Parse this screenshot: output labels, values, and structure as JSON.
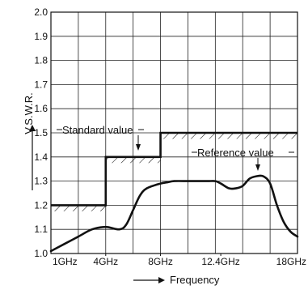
{
  "chart_data": {
    "type": "line",
    "xlabel": "Frequency",
    "ylabel": "V.S.W.R.",
    "xlim": [
      0,
      18
    ],
    "ylim": [
      1.0,
      2.0
    ],
    "x_ticks": [
      {
        "value": 1,
        "label": "1GHz"
      },
      {
        "value": 4,
        "label": "4GHz"
      },
      {
        "value": 8,
        "label": "8GHz"
      },
      {
        "value": 12.4,
        "label": "12.4GHz"
      },
      {
        "value": 18,
        "label": "18GHz"
      }
    ],
    "y_ticks": [
      {
        "value": 1.0,
        "label": "1.0"
      },
      {
        "value": 1.1,
        "label": "1.1"
      },
      {
        "value": 1.2,
        "label": "1.2"
      },
      {
        "value": 1.3,
        "label": "1.3"
      },
      {
        "value": 1.4,
        "label": "1.4"
      },
      {
        "value": 1.5,
        "label": "1.5"
      },
      {
        "value": 1.6,
        "label": "1.6"
      },
      {
        "value": 1.7,
        "label": "1.7"
      },
      {
        "value": 1.8,
        "label": "1.8"
      },
      {
        "value": 1.9,
        "label": "1.9"
      },
      {
        "value": 2.0,
        "label": "2.0"
      }
    ],
    "grid": true,
    "series": [
      {
        "name": "Standard value",
        "kind": "step",
        "x": [
          0,
          4,
          4,
          8,
          8,
          18
        ],
        "y": [
          1.2,
          1.2,
          1.4,
          1.4,
          1.5,
          1.5
        ]
      },
      {
        "name": "Reference value",
        "kind": "curve",
        "x": [
          0,
          1,
          2,
          3,
          4,
          5,
          5.5,
          6,
          6.5,
          7,
          8,
          8.5,
          9,
          10,
          11,
          11.5,
          12,
          12.4,
          13,
          13.5,
          14,
          14.5,
          15,
          15.5,
          16,
          16.5,
          17,
          17.5,
          18
        ],
        "y": [
          1.01,
          1.04,
          1.07,
          1.1,
          1.11,
          1.1,
          1.12,
          1.18,
          1.24,
          1.27,
          1.29,
          1.295,
          1.3,
          1.3,
          1.3,
          1.3,
          1.3,
          1.29,
          1.27,
          1.27,
          1.28,
          1.31,
          1.32,
          1.32,
          1.29,
          1.2,
          1.13,
          1.09,
          1.07
        ]
      }
    ],
    "annotations": [
      {
        "text": "Standard value",
        "x": 1.0,
        "y": 1.5
      },
      {
        "text": "Reference value",
        "x": 14.0,
        "y": 1.4
      }
    ],
    "colors": {
      "line": "#111111",
      "grid": "#222222",
      "background": "#ffffff"
    }
  }
}
